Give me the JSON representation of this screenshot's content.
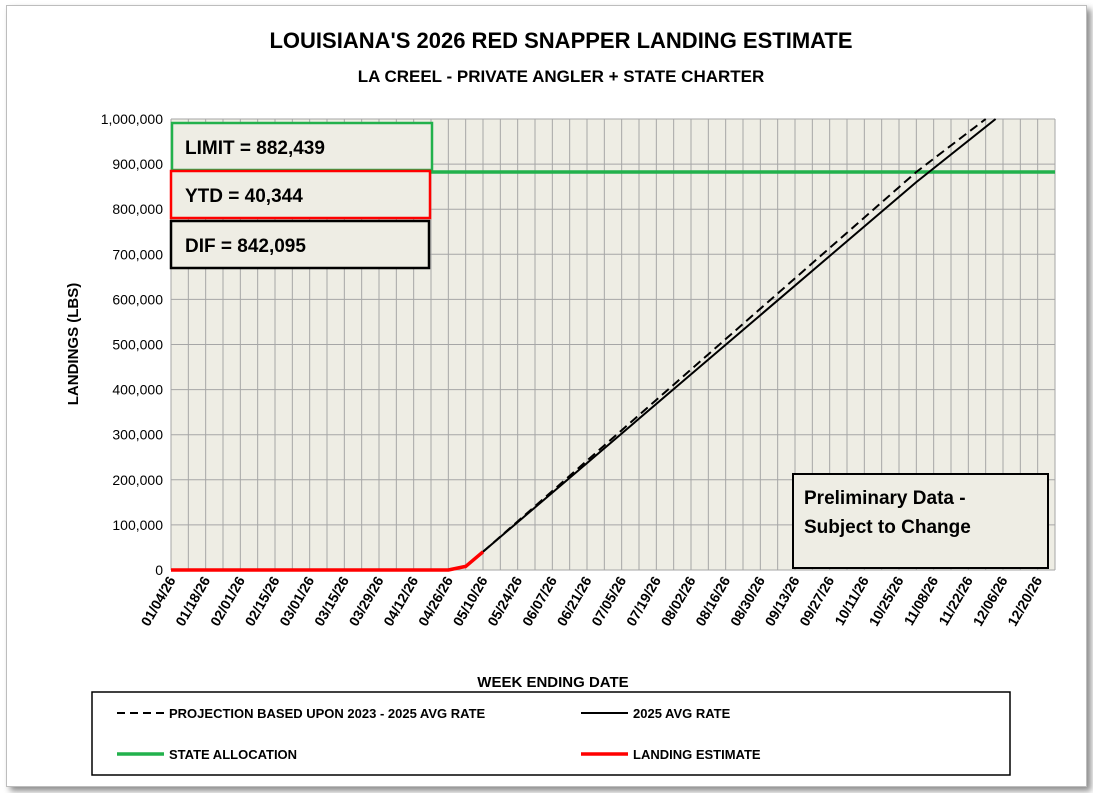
{
  "chart_data": {
    "type": "line",
    "title": "LOUISIANA'S 2026 RED SNAPPER LANDING ESTIMATE",
    "subtitle": "LA CREEL - PRIVATE ANGLER + STATE CHARTER",
    "xlabel": "WEEK ENDING DATE",
    "ylabel": "LANDINGS (LBS)",
    "ylim": [
      0,
      1000000
    ],
    "y_ticks": [
      "0",
      "100,000",
      "200,000",
      "300,000",
      "400,000",
      "500,000",
      "600,000",
      "700,000",
      "800,000",
      "900,000",
      "1,000,000"
    ],
    "x_ticks": [
      "01/04/26",
      "01/18/26",
      "02/01/26",
      "02/15/26",
      "03/01/26",
      "03/15/26",
      "03/29/26",
      "04/12/26",
      "04/26/26",
      "05/10/26",
      "05/24/26",
      "06/07/26",
      "06/21/26",
      "07/05/26",
      "07/19/26",
      "08/02/26",
      "08/16/26",
      "08/30/26",
      "09/13/26",
      "09/27/26",
      "10/11/26",
      "10/25/26",
      "11/08/26",
      "11/22/26",
      "12/06/26",
      "12/20/26"
    ],
    "grid": true,
    "legend_position": "bottom",
    "boxes": {
      "limit": "LIMIT = 882,439",
      "ytd": "YTD = 40,344",
      "dif": "DIF = 842,095"
    },
    "note": [
      "Preliminary Data -",
      "Subject to Change"
    ],
    "series": [
      {
        "name": "PROJECTION BASED UPON 2023 - 2025 AVG RATE",
        "style": "dashed",
        "color": "#000000",
        "x": [
          "05/10/26",
          "11/01/26",
          "11/29/26"
        ],
        "values": [
          40344,
          882439,
          1000000
        ]
      },
      {
        "name": "2025 AVG RATE",
        "style": "solid",
        "color": "#000000",
        "x": [
          "05/10/26",
          "11/01/26",
          "12/03/26"
        ],
        "values": [
          40344,
          860000,
          1000000
        ]
      },
      {
        "name": "STATE ALLOCATION",
        "style": "solid",
        "color": "#22b14c",
        "x": [
          "01/04/26",
          "12/27/26"
        ],
        "values": [
          882439,
          882439
        ]
      },
      {
        "name": "LANDING ESTIMATE",
        "style": "solid",
        "color": "#ff0000",
        "x": [
          "01/04/26",
          "04/26/26",
          "05/03/26",
          "05/10/26"
        ],
        "values": [
          0,
          0,
          8000,
          40344
        ]
      }
    ]
  }
}
